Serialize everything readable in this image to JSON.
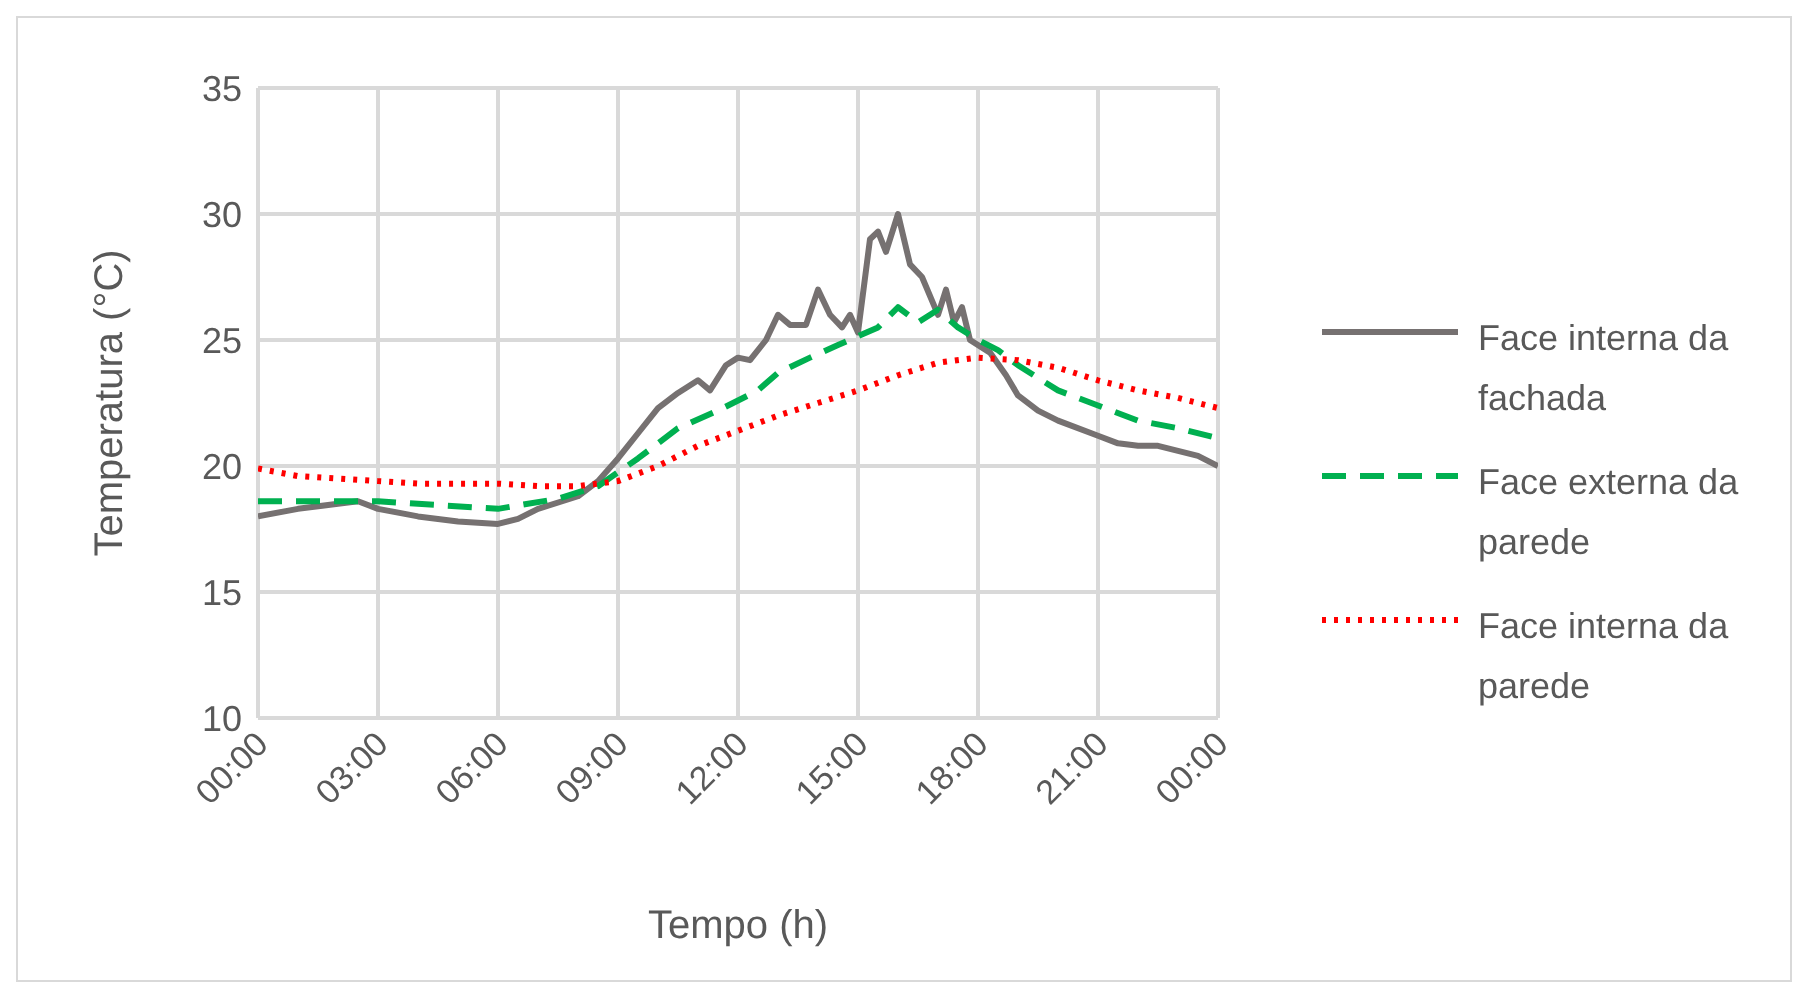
{
  "chart_data": {
    "type": "line",
    "xlabel": "Tempo (h)",
    "ylabel": "Temperatura (°C)",
    "xlim": [
      0,
      24
    ],
    "xticks": [
      {
        "value": 0,
        "label": "00:00"
      },
      {
        "value": 3,
        "label": "03:00"
      },
      {
        "value": 6,
        "label": "06:00"
      },
      {
        "value": 9,
        "label": "09:00"
      },
      {
        "value": 12,
        "label": "12:00"
      },
      {
        "value": 15,
        "label": "15:00"
      },
      {
        "value": 18,
        "label": "18:00"
      },
      {
        "value": 21,
        "label": "21:00"
      },
      {
        "value": 24,
        "label": "00:00"
      }
    ],
    "ylim": [
      10,
      35
    ],
    "yticks": [
      10,
      15,
      20,
      25,
      30,
      35
    ],
    "grid": true,
    "legend": "right",
    "marker": "none",
    "series": [
      {
        "name": "Face interna da fachada",
        "color": "#767171",
        "line_style": "solid",
        "x": [
          0,
          1,
          2,
          2.5,
          3,
          4,
          5,
          6,
          6.5,
          7,
          8,
          8.5,
          9,
          9.5,
          10,
          10.5,
          11,
          11.3,
          11.7,
          12,
          12.3,
          12.7,
          13,
          13.3,
          13.7,
          14,
          14.3,
          14.6,
          14.8,
          15,
          15.3,
          15.5,
          15.7,
          16,
          16.3,
          16.6,
          17,
          17.2,
          17.4,
          17.6,
          17.8,
          18.3,
          18.7,
          19,
          19.5,
          20,
          21,
          21.5,
          22,
          22.5,
          23,
          23.5,
          24
        ],
        "values": [
          18,
          18.3,
          18.5,
          18.6,
          18.3,
          18,
          17.8,
          17.7,
          17.9,
          18.3,
          18.8,
          19.4,
          20.3,
          21.3,
          22.3,
          22.9,
          23.4,
          23,
          24,
          24.3,
          24.2,
          25,
          26,
          25.6,
          25.6,
          27,
          26,
          25.5,
          26,
          25.3,
          29,
          29.3,
          28.5,
          30,
          28,
          27.5,
          26,
          27,
          25.7,
          26.3,
          25,
          24.5,
          23.6,
          22.8,
          22.2,
          21.8,
          21.2,
          20.9,
          20.8,
          20.8,
          20.6,
          20.4,
          20
        ]
      },
      {
        "name": "Face externa da parede",
        "color": "#00b050",
        "line_style": "dashed",
        "x": [
          0,
          3,
          6,
          7.5,
          8.5,
          9.5,
          10.5,
          11.5,
          12.5,
          13,
          13.8,
          14.5,
          15.5,
          16,
          16.5,
          17,
          17.5,
          18,
          18.5,
          19,
          20,
          21,
          22,
          23,
          24
        ],
        "values": [
          18.6,
          18.6,
          18.3,
          18.7,
          19.2,
          20.3,
          21.5,
          22.2,
          23,
          23.7,
          24.3,
          24.8,
          25.5,
          26.3,
          25.7,
          26.2,
          25.5,
          25,
          24.6,
          24,
          23,
          22.4,
          21.8,
          21.5,
          21.1
        ]
      },
      {
        "name": "Face interna da parede",
        "color": "#ff0000",
        "line_style": "dotted",
        "x": [
          0,
          1,
          2,
          3,
          4,
          5,
          6,
          7,
          8,
          9,
          10,
          11,
          12,
          13,
          14,
          15,
          16,
          17,
          18,
          19,
          20,
          21,
          22,
          23,
          24
        ],
        "values": [
          19.9,
          19.6,
          19.5,
          19.4,
          19.3,
          19.3,
          19.3,
          19.2,
          19.2,
          19.4,
          20,
          20.8,
          21.4,
          22,
          22.5,
          23,
          23.6,
          24.1,
          24.3,
          24.2,
          23.9,
          23.4,
          23,
          22.7,
          22.3
        ]
      }
    ]
  }
}
